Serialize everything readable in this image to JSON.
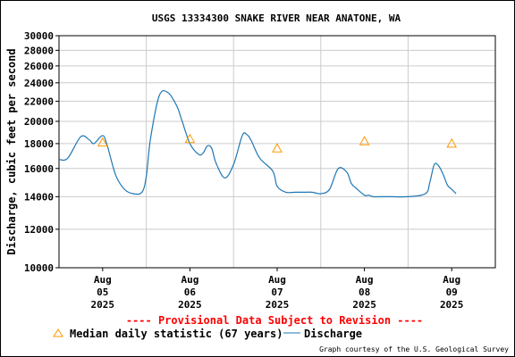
{
  "chart_data": {
    "type": "line",
    "title": "USGS 13334300 SNAKE RIVER NEAR ANATONE, WA",
    "ylabel": "Discharge, cubic feet per second",
    "y_scale": "log",
    "ylim": [
      10000,
      30000
    ],
    "y_ticks": [
      10000,
      12000,
      14000,
      16000,
      18000,
      20000,
      22000,
      24000,
      26000,
      28000,
      30000
    ],
    "x_unit": "day",
    "xlim": [
      4.5,
      9.5
    ],
    "x_ticks": [
      {
        "x": 5,
        "month": "Aug",
        "day": "05",
        "year": "2025"
      },
      {
        "x": 6,
        "month": "Aug",
        "day": "06",
        "year": "2025"
      },
      {
        "x": 7,
        "month": "Aug",
        "day": "07",
        "year": "2025"
      },
      {
        "x": 8,
        "month": "Aug",
        "day": "08",
        "year": "2025"
      },
      {
        "x": 9,
        "month": "Aug",
        "day": "09",
        "year": "2025"
      }
    ],
    "grid": true,
    "series": [
      {
        "name": "Discharge",
        "color": "#1f77b4",
        "x": [
          4.5,
          4.6,
          4.75,
          4.85,
          4.9,
          5.0,
          5.05,
          5.15,
          5.25,
          5.35,
          5.45,
          5.5,
          5.55,
          5.65,
          5.75,
          5.85,
          5.9,
          6.0,
          6.1,
          6.15,
          6.2,
          6.25,
          6.3,
          6.4,
          6.5,
          6.6,
          6.65,
          6.7,
          6.8,
          6.95,
          7.0,
          7.1,
          7.2,
          7.25,
          7.3,
          7.4,
          7.5,
          7.6,
          7.7,
          7.8,
          7.85,
          7.9,
          8.0,
          8.05,
          8.1,
          8.2,
          8.3,
          8.5,
          8.7,
          8.75,
          8.8,
          8.85,
          8.9,
          8.95,
          9.0,
          9.05
        ],
        "y": [
          16700,
          16800,
          18600,
          18300,
          18000,
          18700,
          17900,
          15500,
          14500,
          14200,
          14300,
          15400,
          18500,
          22600,
          22900,
          21500,
          20300,
          18000,
          17100,
          17200,
          17800,
          17600,
          16400,
          15300,
          16300,
          18700,
          18800,
          18300,
          16800,
          15800,
          14700,
          14300,
          14300,
          14300,
          14300,
          14300,
          14200,
          14500,
          16000,
          15700,
          14900,
          14600,
          14100,
          14100,
          14000,
          14000,
          14000,
          14000,
          14200,
          15000,
          16300,
          16200,
          15600,
          14800,
          14500,
          14200
        ]
      },
      {
        "name": "Median daily statistic (67 years)",
        "color": "#ff9900",
        "x": [
          5,
          6,
          7,
          8,
          9
        ],
        "y": [
          18100,
          18400,
          17600,
          18200,
          18000
        ]
      }
    ],
    "annotation": "---- Provisional Data Subject to Revision ----",
    "credit": "Graph courtesy of the U.S. Geological Survey",
    "legend_position": "bottom"
  }
}
